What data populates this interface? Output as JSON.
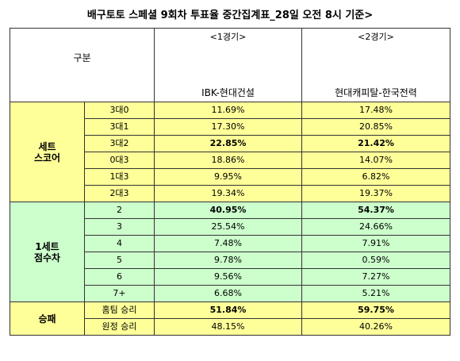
{
  "title": "배구토토 스페셜 9회차 투표율 중간집계표_28일 오전 8시 기준>",
  "header": {
    "category_label": "구분",
    "games": [
      {
        "number": "<1경기>",
        "match": "IBK-현대건설"
      },
      {
        "number": "<2경기>",
        "match": "현대캐피탈-한국전력"
      }
    ]
  },
  "groups": [
    {
      "label": "세트\n스코어",
      "color": "#ffff99",
      "rows": [
        {
          "option": "3대0",
          "g1": "11.69%",
          "g2": "17.48%",
          "b1": false,
          "b2": false
        },
        {
          "option": "3대1",
          "g1": "17.30%",
          "g2": "20.85%",
          "b1": false,
          "b2": false
        },
        {
          "option": "3대2",
          "g1": "22.85%",
          "g2": "21.42%",
          "b1": true,
          "b2": true
        },
        {
          "option": "0대3",
          "g1": "18.86%",
          "g2": "14.07%",
          "b1": false,
          "b2": false
        },
        {
          "option": "1대3",
          "g1": "9.95%",
          "g2": "6.82%",
          "b1": false,
          "b2": false
        },
        {
          "option": "2대3",
          "g1": "19.34%",
          "g2": "19.37%",
          "b1": false,
          "b2": false
        }
      ]
    },
    {
      "label": "1세트\n점수차",
      "color": "#ccffcc",
      "rows": [
        {
          "option": "2",
          "g1": "40.95%",
          "g2": "54.37%",
          "b1": true,
          "b2": true
        },
        {
          "option": "3",
          "g1": "25.54%",
          "g2": "24.66%",
          "b1": false,
          "b2": false
        },
        {
          "option": "4",
          "g1": "7.48%",
          "g2": "7.91%",
          "b1": false,
          "b2": false
        },
        {
          "option": "5",
          "g1": "9.78%",
          "g2": "0.59%",
          "b1": false,
          "b2": false
        },
        {
          "option": "6",
          "g1": "9.56%",
          "g2": "7.27%",
          "b1": false,
          "b2": false
        },
        {
          "option": "7+",
          "g1": "6.68%",
          "g2": "5.21%",
          "b1": false,
          "b2": false
        }
      ]
    },
    {
      "label": "승패",
      "color": "#ffff99",
      "rows": [
        {
          "option": "홈팀 승리",
          "g1": "51.84%",
          "g2": "59.75%",
          "b1": true,
          "b2": true
        },
        {
          "option": "원정 승리",
          "g1": "48.15%",
          "g2": "40.26%",
          "b1": false,
          "b2": false
        }
      ]
    }
  ]
}
